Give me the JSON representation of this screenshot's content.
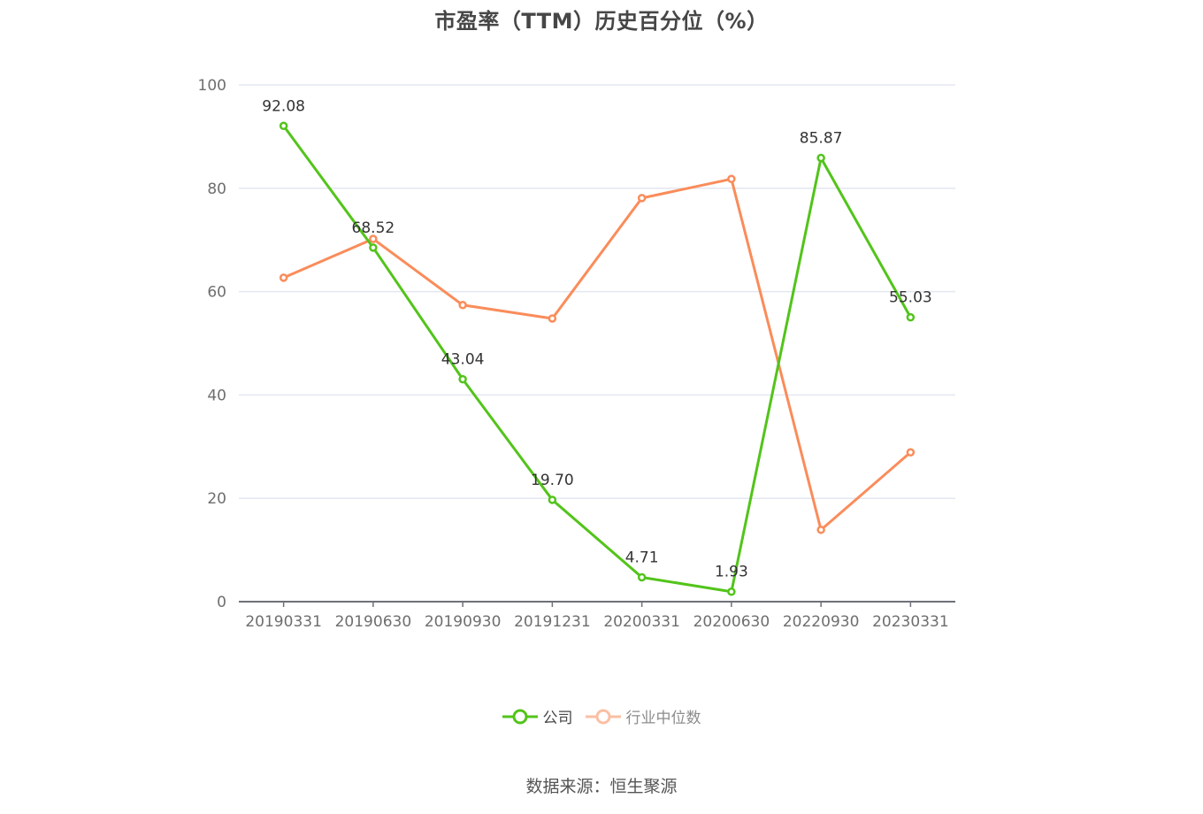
{
  "title": "市盈率（TTM）历史百分位（%）",
  "source": "数据来源：恒生聚源",
  "legend": [
    {
      "label": "公司",
      "color": "#52c41a",
      "active": true
    },
    {
      "label": "行业中位数",
      "color": "#fa8c5a",
      "active": false
    }
  ],
  "chart_data": {
    "type": "line",
    "title": "市盈率（TTM）历史百分位（%）",
    "xlabel": "",
    "ylabel": "",
    "ylim": [
      0,
      100
    ],
    "yticks": [
      0,
      20,
      40,
      60,
      80,
      100
    ],
    "grid": true,
    "legend_position": "bottom",
    "categories": [
      "20190331",
      "20190630",
      "20190930",
      "20191231",
      "20200331",
      "20200630",
      "20220930",
      "20230331"
    ],
    "series": [
      {
        "name": "公司",
        "color": "#52c41a",
        "values": [
          92.08,
          68.52,
          43.04,
          19.7,
          4.71,
          1.93,
          85.87,
          55.03
        ],
        "labels_shown": true
      },
      {
        "name": "行业中位数",
        "color": "#fa8c5a",
        "values": [
          62.7,
          70.2,
          57.4,
          54.8,
          78.1,
          81.8,
          13.9,
          28.9
        ],
        "labels_shown": false
      }
    ]
  }
}
